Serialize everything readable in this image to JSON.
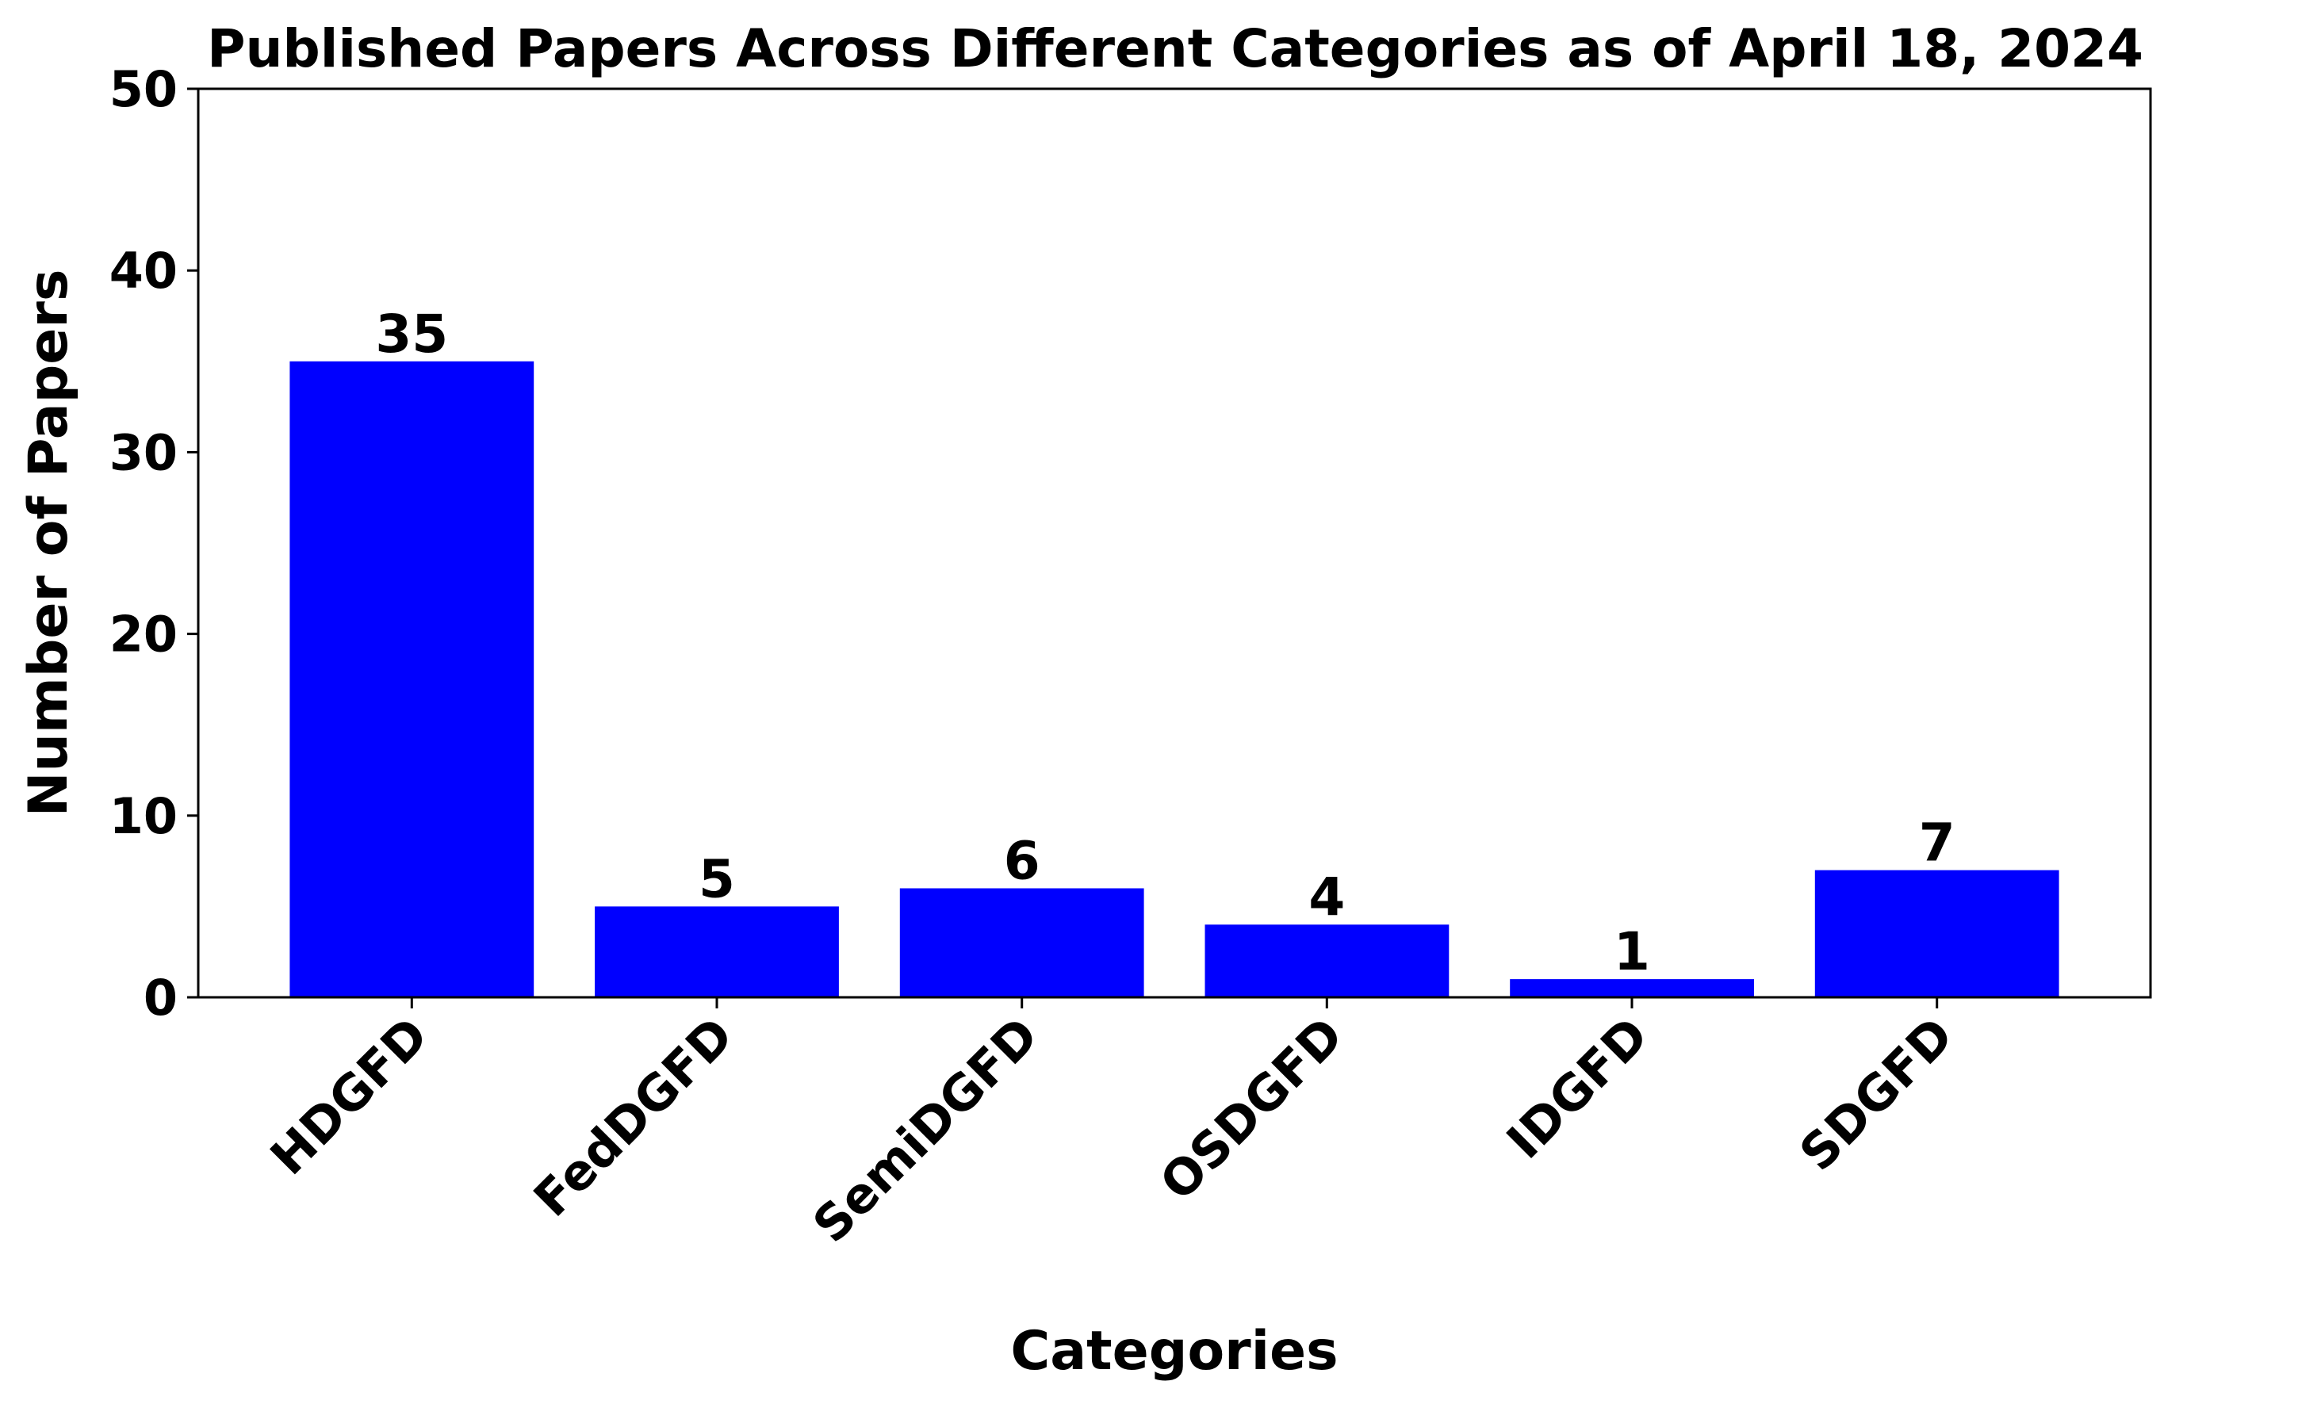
{
  "chart_data": {
    "type": "bar",
    "title": "Published Papers Across Different Categories as of April 18, 2024",
    "xlabel": "Categories",
    "ylabel": "Number of Papers",
    "categories": [
      "HDGFD",
      "FedDGFD",
      "SemiDGFD",
      "OSDGFD",
      "IDGFD",
      "SDGFD"
    ],
    "values": [
      35,
      5,
      6,
      4,
      1,
      7
    ],
    "ylim": [
      0,
      50
    ],
    "yticks": [
      0,
      10,
      20,
      30,
      40,
      50
    ],
    "grid": false,
    "legend": "none",
    "bar_color": "#0000ff",
    "data_labels": true,
    "xtick_rotation": 45
  }
}
